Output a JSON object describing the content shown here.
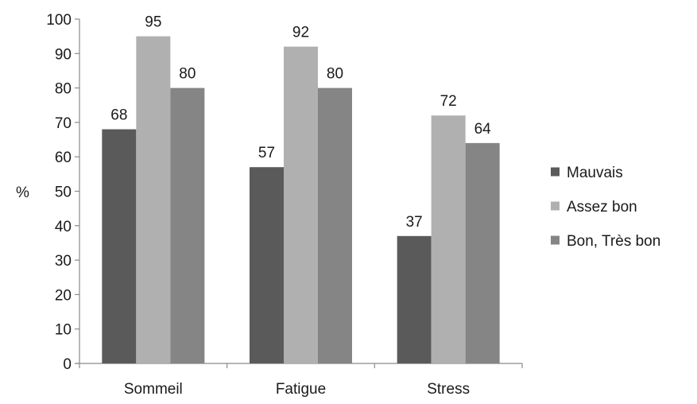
{
  "chart_data": {
    "type": "bar",
    "title": "",
    "xlabel": "",
    "ylabel": "%",
    "ylim": [
      0,
      100
    ],
    "yticks": [
      0,
      10,
      20,
      30,
      40,
      50,
      60,
      70,
      80,
      90,
      100
    ],
    "categories": [
      "Sommeil",
      "Fatigue",
      "Stress"
    ],
    "series": [
      {
        "name": "Mauvais",
        "values": [
          68,
          57,
          37
        ],
        "color": "#5a5a5a"
      },
      {
        "name": "Assez bon",
        "values": [
          95,
          92,
          72
        ],
        "color": "#b0b0b0"
      },
      {
        "name": "Bon, Très bon",
        "values": [
          80,
          80,
          64
        ],
        "color": "#858585"
      }
    ],
    "grid": false,
    "legend_position": "right",
    "axis_color": "#8a8a8a"
  }
}
